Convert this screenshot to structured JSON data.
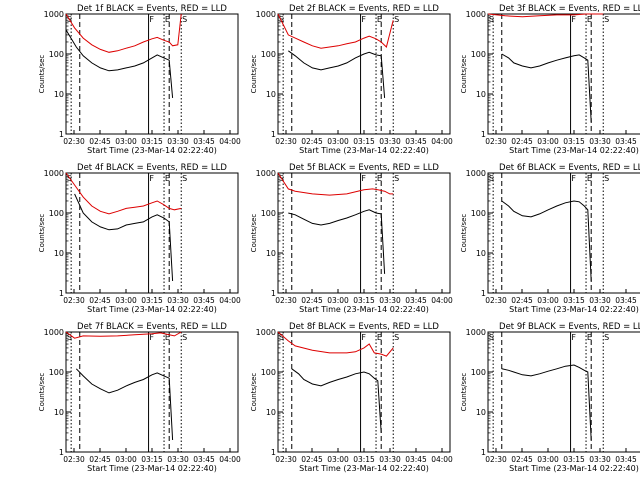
{
  "figure": {
    "ylabel": "Counts/sec",
    "xlabel": "Start Time (23-Mar-14 02:22:40)",
    "x_ticks": [
      "02:30",
      "02:45",
      "03:00",
      "03:15",
      "03:30",
      "03:45",
      "04:00"
    ],
    "y_ticks": [
      "1",
      "10",
      "100",
      "1000"
    ],
    "x_range_minutes": [
      0,
      100
    ],
    "y_range_log": [
      1,
      1000
    ],
    "colors": {
      "events": "#000000",
      "lld": "#dd0000",
      "axes": "#000000"
    }
  },
  "chart_data": [
    {
      "type": "line",
      "title": "Det 1f BLACK = Events, RED = LLD",
      "markers": [
        "S",
        "F",
        "E",
        "S"
      ],
      "events": [
        [
          0,
          400
        ],
        [
          6,
          150
        ],
        [
          10,
          90
        ],
        [
          15,
          60
        ],
        [
          20,
          45
        ],
        [
          25,
          38
        ],
        [
          30,
          40
        ],
        [
          35,
          45
        ],
        [
          40,
          50
        ],
        [
          45,
          60
        ],
        [
          50,
          80
        ],
        [
          53,
          95
        ],
        [
          57,
          80
        ],
        [
          60,
          70
        ],
        [
          62,
          8
        ]
      ],
      "lld": [
        [
          0,
          1000
        ],
        [
          5,
          450
        ],
        [
          10,
          250
        ],
        [
          15,
          170
        ],
        [
          20,
          130
        ],
        [
          25,
          110
        ],
        [
          30,
          120
        ],
        [
          35,
          140
        ],
        [
          40,
          160
        ],
        [
          45,
          200
        ],
        [
          50,
          240
        ],
        [
          53,
          260
        ],
        [
          57,
          220
        ],
        [
          60,
          200
        ],
        [
          62,
          160
        ],
        [
          65,
          170
        ],
        [
          67,
          1000
        ]
      ]
    },
    {
      "type": "line",
      "title": "Det 2f BLACK = Events, RED = LLD",
      "markers": [
        "S",
        "F",
        "E",
        "S"
      ],
      "events": [
        [
          6,
          120
        ],
        [
          10,
          90
        ],
        [
          15,
          60
        ],
        [
          20,
          45
        ],
        [
          25,
          40
        ],
        [
          30,
          45
        ],
        [
          35,
          50
        ],
        [
          40,
          60
        ],
        [
          45,
          80
        ],
        [
          50,
          100
        ],
        [
          53,
          110
        ],
        [
          57,
          95
        ],
        [
          60,
          90
        ],
        [
          62,
          8
        ]
      ],
      "lld": [
        [
          0,
          1000
        ],
        [
          6,
          300
        ],
        [
          10,
          250
        ],
        [
          15,
          200
        ],
        [
          20,
          160
        ],
        [
          25,
          140
        ],
        [
          30,
          150
        ],
        [
          35,
          160
        ],
        [
          40,
          180
        ],
        [
          45,
          200
        ],
        [
          50,
          250
        ],
        [
          53,
          280
        ],
        [
          57,
          240
        ],
        [
          60,
          200
        ],
        [
          63,
          150
        ],
        [
          67,
          700
        ]
      ]
    },
    {
      "type": "line",
      "title": "Det 3f BLACK = Events, RED = LLD",
      "markers": [
        "S",
        "F",
        "E",
        "S"
      ],
      "events": [
        [
          8,
          100
        ],
        [
          12,
          80
        ],
        [
          15,
          60
        ],
        [
          20,
          50
        ],
        [
          25,
          45
        ],
        [
          30,
          50
        ],
        [
          35,
          60
        ],
        [
          40,
          70
        ],
        [
          45,
          80
        ],
        [
          50,
          90
        ],
        [
          53,
          95
        ],
        [
          56,
          80
        ],
        [
          58,
          70
        ],
        [
          60,
          2
        ]
      ],
      "lld": [
        [
          0,
          1000
        ],
        [
          10,
          900
        ],
        [
          20,
          850
        ],
        [
          30,
          900
        ],
        [
          40,
          950
        ],
        [
          50,
          950
        ],
        [
          57,
          1000
        ],
        [
          60,
          1000
        ],
        [
          67,
          1000
        ]
      ]
    },
    {
      "type": "line",
      "title": "Det 4f BLACK = Events, RED = LLD",
      "markers": [
        "S",
        "F",
        "E",
        "S"
      ],
      "events": [
        [
          5,
          300
        ],
        [
          10,
          100
        ],
        [
          15,
          60
        ],
        [
          20,
          45
        ],
        [
          25,
          38
        ],
        [
          30,
          40
        ],
        [
          35,
          50
        ],
        [
          40,
          55
        ],
        [
          45,
          60
        ],
        [
          50,
          80
        ],
        [
          53,
          90
        ],
        [
          57,
          75
        ],
        [
          60,
          60
        ],
        [
          62,
          2
        ]
      ],
      "lld": [
        [
          0,
          1000
        ],
        [
          5,
          500
        ],
        [
          10,
          250
        ],
        [
          15,
          150
        ],
        [
          20,
          110
        ],
        [
          25,
          95
        ],
        [
          30,
          110
        ],
        [
          35,
          130
        ],
        [
          40,
          140
        ],
        [
          45,
          150
        ],
        [
          50,
          180
        ],
        [
          53,
          200
        ],
        [
          57,
          160
        ],
        [
          60,
          130
        ],
        [
          63,
          120
        ],
        [
          67,
          130
        ]
      ]
    },
    {
      "type": "line",
      "title": "Det 5f BLACK = Events, RED = LLD",
      "markers": [
        "S",
        "F",
        "E",
        "S"
      ],
      "events": [
        [
          6,
          100
        ],
        [
          10,
          90
        ],
        [
          15,
          70
        ],
        [
          20,
          55
        ],
        [
          25,
          50
        ],
        [
          30,
          55
        ],
        [
          35,
          65
        ],
        [
          40,
          75
        ],
        [
          45,
          90
        ],
        [
          50,
          110
        ],
        [
          53,
          120
        ],
        [
          57,
          100
        ],
        [
          60,
          95
        ],
        [
          62,
          3
        ]
      ],
      "lld": [
        [
          0,
          1000
        ],
        [
          6,
          400
        ],
        [
          10,
          350
        ],
        [
          20,
          300
        ],
        [
          30,
          280
        ],
        [
          40,
          300
        ],
        [
          50,
          380
        ],
        [
          55,
          400
        ],
        [
          58,
          380
        ],
        [
          62,
          350
        ],
        [
          65,
          300
        ],
        [
          67,
          300
        ]
      ]
    },
    {
      "type": "line",
      "title": "Det 6f BLACK = Events, RED = LLD",
      "markers": [
        "S",
        "F",
        "E",
        "S"
      ],
      "events": [
        [
          8,
          200
        ],
        [
          12,
          150
        ],
        [
          15,
          110
        ],
        [
          20,
          85
        ],
        [
          25,
          80
        ],
        [
          30,
          95
        ],
        [
          35,
          120
        ],
        [
          40,
          150
        ],
        [
          45,
          180
        ],
        [
          50,
          200
        ],
        [
          53,
          190
        ],
        [
          56,
          150
        ],
        [
          58,
          120
        ],
        [
          60,
          2
        ]
      ],
      "lld": []
    },
    {
      "type": "line",
      "title": "Det 7f BLACK = Events, RED = LLD",
      "markers": [
        "S",
        "F",
        "E",
        "S"
      ],
      "events": [
        [
          6,
          120
        ],
        [
          10,
          80
        ],
        [
          15,
          50
        ],
        [
          20,
          38
        ],
        [
          25,
          30
        ],
        [
          30,
          35
        ],
        [
          35,
          45
        ],
        [
          40,
          55
        ],
        [
          45,
          65
        ],
        [
          50,
          85
        ],
        [
          53,
          95
        ],
        [
          57,
          80
        ],
        [
          60,
          70
        ],
        [
          62,
          2
        ]
      ],
      "lld": [
        [
          0,
          1000
        ],
        [
          5,
          700
        ],
        [
          10,
          800
        ],
        [
          20,
          780
        ],
        [
          30,
          800
        ],
        [
          40,
          850
        ],
        [
          50,
          900
        ],
        [
          55,
          950
        ],
        [
          60,
          850
        ],
        [
          63,
          800
        ],
        [
          67,
          1000
        ]
      ]
    },
    {
      "type": "line",
      "title": "Det 8f BLACK = Events, RED = LLD",
      "markers": [
        "S",
        "F",
        "E",
        "S"
      ],
      "events": [
        [
          8,
          120
        ],
        [
          12,
          90
        ],
        [
          15,
          65
        ],
        [
          20,
          50
        ],
        [
          25,
          45
        ],
        [
          30,
          55
        ],
        [
          35,
          65
        ],
        [
          40,
          75
        ],
        [
          45,
          90
        ],
        [
          50,
          100
        ],
        [
          53,
          90
        ],
        [
          56,
          70
        ],
        [
          58,
          60
        ],
        [
          60,
          3
        ]
      ],
      "lld": [
        [
          0,
          1000
        ],
        [
          6,
          600
        ],
        [
          10,
          450
        ],
        [
          20,
          350
        ],
        [
          30,
          300
        ],
        [
          40,
          300
        ],
        [
          45,
          320
        ],
        [
          50,
          400
        ],
        [
          53,
          500
        ],
        [
          56,
          300
        ],
        [
          60,
          280
        ],
        [
          63,
          250
        ],
        [
          67,
          400
        ]
      ]
    },
    {
      "type": "line",
      "title": "Det 9f BLACK = Events, RED = LLD",
      "markers": [
        "S",
        "F",
        "E",
        "S"
      ],
      "events": [
        [
          8,
          120
        ],
        [
          12,
          110
        ],
        [
          15,
          100
        ],
        [
          20,
          85
        ],
        [
          25,
          80
        ],
        [
          30,
          90
        ],
        [
          35,
          105
        ],
        [
          40,
          120
        ],
        [
          45,
          140
        ],
        [
          50,
          150
        ],
        [
          53,
          130
        ],
        [
          56,
          110
        ],
        [
          58,
          100
        ],
        [
          60,
          2
        ]
      ],
      "lld": []
    }
  ]
}
